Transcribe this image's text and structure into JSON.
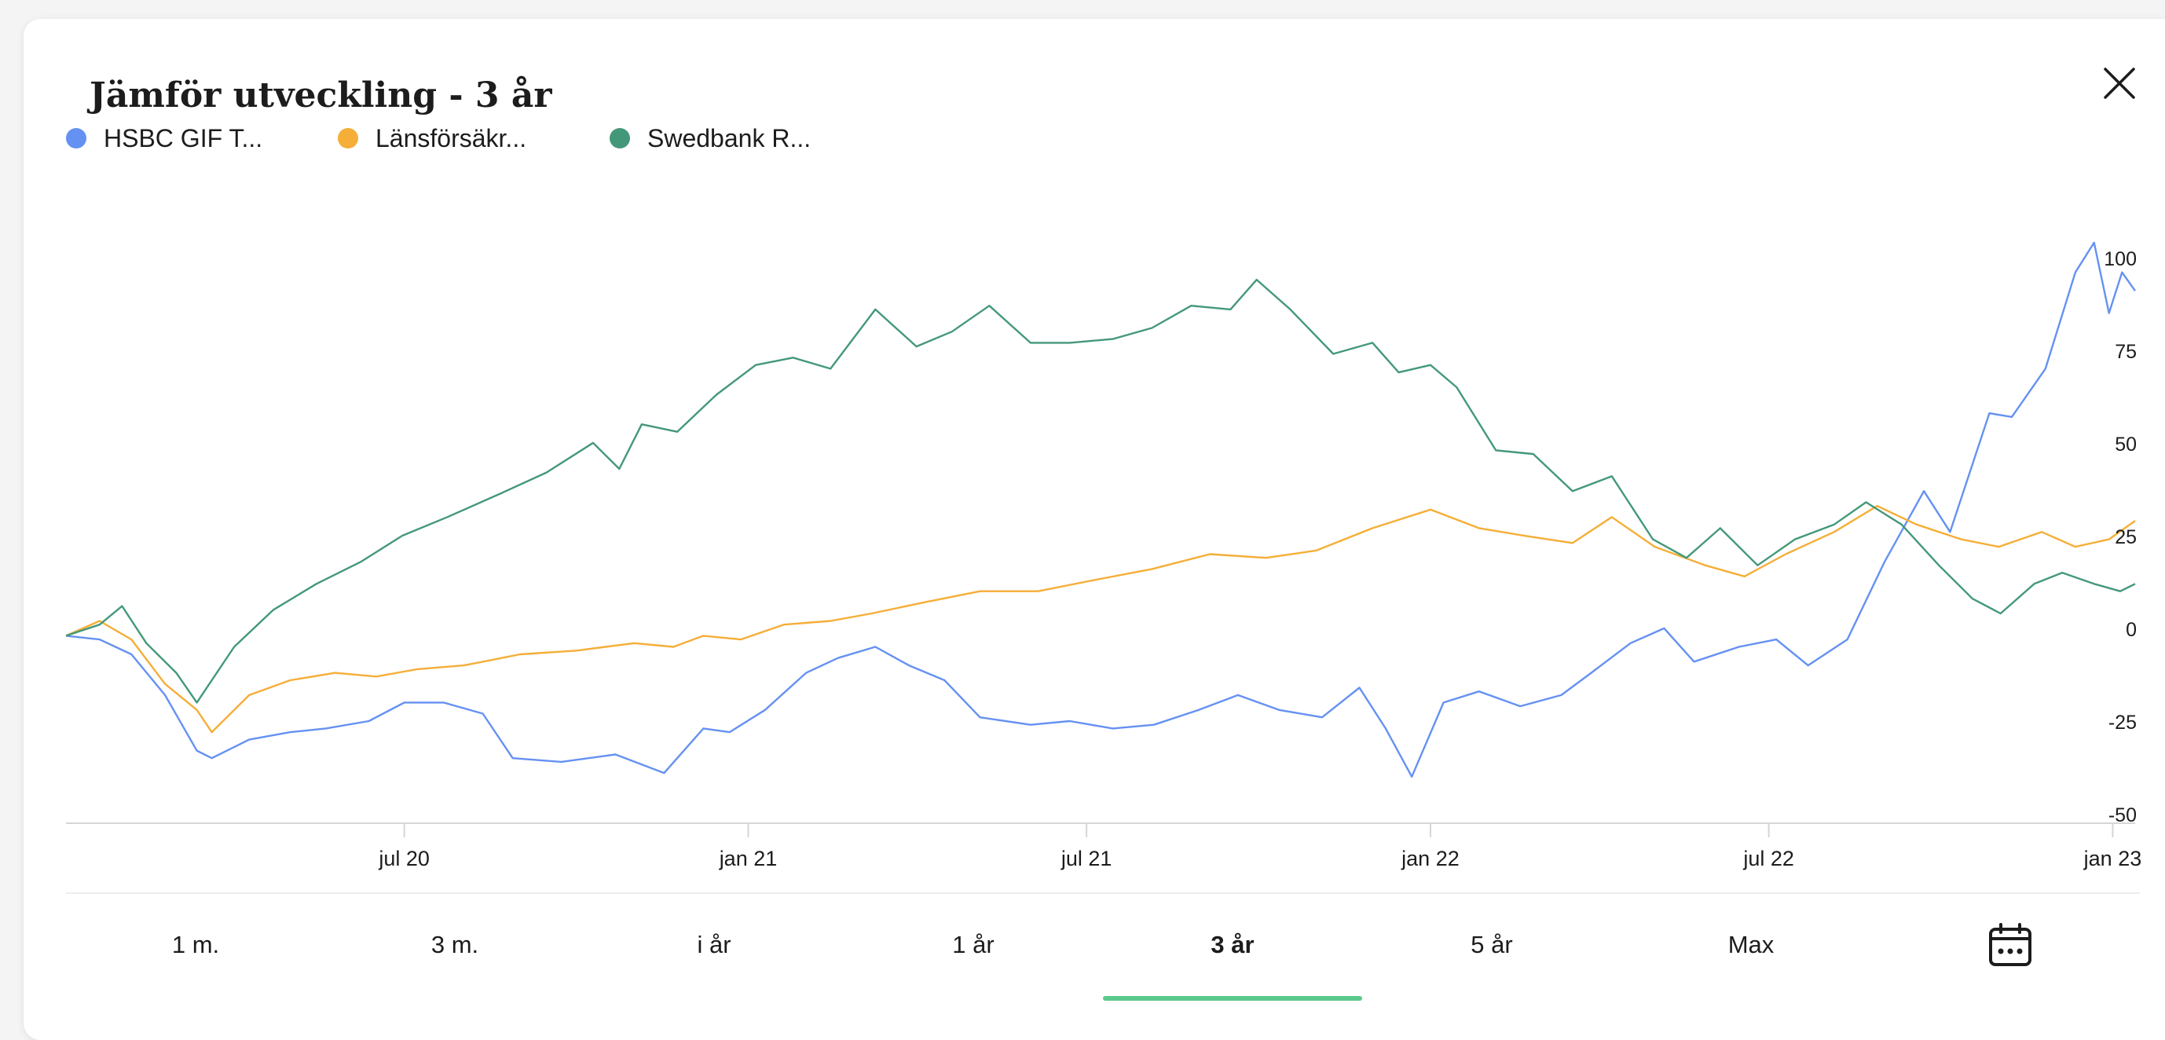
{
  "dialog": {
    "title": "Jämför utveckling - 3 år"
  },
  "legend": [
    {
      "label": "HSBC GIF T...",
      "color": "#6591f2"
    },
    {
      "label": "Länsförsäkr...",
      "color": "#f5ae37"
    },
    {
      "label": "Swedbank R...",
      "color": "#44987a"
    }
  ],
  "periods": [
    "1 m.",
    "3 m.",
    "i år",
    "1 år",
    "3 år",
    "5 år",
    "Max"
  ],
  "active_period": "3 år",
  "icons": {
    "close": "close-icon",
    "calendar": "calendar-icon"
  },
  "chart_data": {
    "type": "line",
    "title": "",
    "xlabel": "",
    "ylabel": "",
    "x_start": "2020-01-02",
    "x_end": "2023-01-13",
    "xlim": [
      "2020-01-02",
      "2023-01-13"
    ],
    "ylim": [
      -50,
      108
    ],
    "y_ticks": [
      100,
      75,
      50,
      25,
      0,
      -25,
      -50
    ],
    "x_ticks": [
      {
        "label": "jul 20",
        "date": "2020-07-01"
      },
      {
        "label": "jan 21",
        "date": "2021-01-01"
      },
      {
        "label": "jul 21",
        "date": "2021-07-01"
      },
      {
        "label": "jan 22",
        "date": "2022-01-01"
      },
      {
        "label": "jul 22",
        "date": "2022-07-01"
      },
      {
        "label": "jan 23",
        "date": "2023-01-01"
      }
    ],
    "grid": false,
    "y_axis_position": "right",
    "series": [
      {
        "name": "HSBC GIF T...",
        "color": "#6591f2",
        "points": [
          [
            "2020-01-02",
            -2
          ],
          [
            "2020-01-20",
            -3
          ],
          [
            "2020-02-06",
            -7
          ],
          [
            "2020-02-24",
            -18
          ],
          [
            "2020-03-12",
            -33
          ],
          [
            "2020-03-20",
            -35
          ],
          [
            "2020-04-09",
            -30
          ],
          [
            "2020-05-01",
            -28
          ],
          [
            "2020-05-20",
            -27
          ],
          [
            "2020-06-12",
            -25
          ],
          [
            "2020-07-01",
            -20
          ],
          [
            "2020-07-22",
            -20
          ],
          [
            "2020-08-12",
            -23
          ],
          [
            "2020-08-28",
            -35
          ],
          [
            "2020-09-23",
            -36
          ],
          [
            "2020-10-22",
            -34
          ],
          [
            "2020-11-17",
            -39
          ],
          [
            "2020-12-08",
            -27
          ],
          [
            "2020-12-22",
            -28
          ],
          [
            "2021-01-10",
            -22
          ],
          [
            "2021-02-01",
            -12
          ],
          [
            "2021-02-18",
            -8
          ],
          [
            "2021-03-10",
            -5
          ],
          [
            "2021-03-28",
            -10
          ],
          [
            "2021-04-16",
            -14
          ],
          [
            "2021-05-05",
            -24
          ],
          [
            "2021-06-01",
            -26
          ],
          [
            "2021-06-22",
            -25
          ],
          [
            "2021-07-15",
            -27
          ],
          [
            "2021-08-06",
            -26
          ],
          [
            "2021-08-30",
            -22
          ],
          [
            "2021-09-20",
            -18
          ],
          [
            "2021-10-12",
            -22
          ],
          [
            "2021-11-04",
            -24
          ],
          [
            "2021-11-24",
            -16
          ],
          [
            "2021-12-08",
            -27
          ],
          [
            "2021-12-22",
            -40
          ],
          [
            "2022-01-08",
            -20
          ],
          [
            "2022-01-27",
            -17
          ],
          [
            "2022-02-18",
            -21
          ],
          [
            "2022-03-12",
            -18
          ],
          [
            "2022-03-28",
            -12
          ],
          [
            "2022-04-18",
            -4
          ],
          [
            "2022-05-06",
            0
          ],
          [
            "2022-05-22",
            -9
          ],
          [
            "2022-06-15",
            -5
          ],
          [
            "2022-07-05",
            -3
          ],
          [
            "2022-07-22",
            -10
          ],
          [
            "2022-08-12",
            -3
          ],
          [
            "2022-09-01",
            18
          ],
          [
            "2022-09-22",
            37
          ],
          [
            "2022-10-06",
            26
          ],
          [
            "2022-10-27",
            58
          ],
          [
            "2022-11-08",
            57
          ],
          [
            "2022-11-26",
            70
          ],
          [
            "2022-12-12",
            96
          ],
          [
            "2022-12-22",
            104
          ],
          [
            "2022-12-30",
            85
          ],
          [
            "2023-01-06",
            96
          ],
          [
            "2023-01-13",
            91
          ]
        ]
      },
      {
        "name": "Länsförsäkr...",
        "color": "#f5ae37",
        "points": [
          [
            "2020-01-02",
            -2
          ],
          [
            "2020-01-20",
            2
          ],
          [
            "2020-02-06",
            -3
          ],
          [
            "2020-02-24",
            -15
          ],
          [
            "2020-03-12",
            -22
          ],
          [
            "2020-03-20",
            -28
          ],
          [
            "2020-04-09",
            -18
          ],
          [
            "2020-05-01",
            -14
          ],
          [
            "2020-05-25",
            -12
          ],
          [
            "2020-06-16",
            -13
          ],
          [
            "2020-07-08",
            -11
          ],
          [
            "2020-08-02",
            -10
          ],
          [
            "2020-09-01",
            -7
          ],
          [
            "2020-10-01",
            -6
          ],
          [
            "2020-11-01",
            -4
          ],
          [
            "2020-11-22",
            -5
          ],
          [
            "2020-12-08",
            -2
          ],
          [
            "2020-12-28",
            -3
          ],
          [
            "2021-01-20",
            1
          ],
          [
            "2021-02-14",
            2
          ],
          [
            "2021-03-08",
            4
          ],
          [
            "2021-04-05",
            7
          ],
          [
            "2021-05-05",
            10
          ],
          [
            "2021-06-05",
            10
          ],
          [
            "2021-07-05",
            13
          ],
          [
            "2021-08-05",
            16
          ],
          [
            "2021-09-05",
            20
          ],
          [
            "2021-10-05",
            19
          ],
          [
            "2021-11-01",
            21
          ],
          [
            "2021-12-01",
            27
          ],
          [
            "2022-01-01",
            32
          ],
          [
            "2022-01-27",
            27
          ],
          [
            "2022-02-20",
            25
          ],
          [
            "2022-03-18",
            23
          ],
          [
            "2022-04-08",
            30
          ],
          [
            "2022-05-01",
            22
          ],
          [
            "2022-05-28",
            17
          ],
          [
            "2022-06-18",
            14
          ],
          [
            "2022-07-10",
            20
          ],
          [
            "2022-08-05",
            26
          ],
          [
            "2022-08-28",
            33
          ],
          [
            "2022-09-18",
            28
          ],
          [
            "2022-10-12",
            24
          ],
          [
            "2022-11-01",
            22
          ],
          [
            "2022-11-24",
            26
          ],
          [
            "2022-12-12",
            22
          ],
          [
            "2022-12-30",
            24
          ],
          [
            "2023-01-13",
            29
          ]
        ]
      },
      {
        "name": "Swedbank R...",
        "color": "#44987a",
        "points": [
          [
            "2020-01-02",
            -2
          ],
          [
            "2020-01-20",
            1
          ],
          [
            "2020-02-01",
            6
          ],
          [
            "2020-02-14",
            -4
          ],
          [
            "2020-03-01",
            -12
          ],
          [
            "2020-03-12",
            -20
          ],
          [
            "2020-04-01",
            -5
          ],
          [
            "2020-04-22",
            5
          ],
          [
            "2020-05-15",
            12
          ],
          [
            "2020-06-08",
            18
          ],
          [
            "2020-06-30",
            25
          ],
          [
            "2020-07-24",
            30
          ],
          [
            "2020-08-20",
            36
          ],
          [
            "2020-09-15",
            42
          ],
          [
            "2020-10-10",
            50
          ],
          [
            "2020-10-24",
            43
          ],
          [
            "2020-11-05",
            55
          ],
          [
            "2020-11-24",
            53
          ],
          [
            "2020-12-15",
            63
          ],
          [
            "2021-01-05",
            71
          ],
          [
            "2021-01-25",
            73
          ],
          [
            "2021-02-14",
            70
          ],
          [
            "2021-03-10",
            86
          ],
          [
            "2021-04-01",
            76
          ],
          [
            "2021-04-20",
            80
          ],
          [
            "2021-05-10",
            87
          ],
          [
            "2021-06-01",
            77
          ],
          [
            "2021-06-22",
            77
          ],
          [
            "2021-07-15",
            78
          ],
          [
            "2021-08-05",
            81
          ],
          [
            "2021-08-26",
            87
          ],
          [
            "2021-09-16",
            86
          ],
          [
            "2021-09-30",
            94
          ],
          [
            "2021-10-18",
            86
          ],
          [
            "2021-11-10",
            74
          ],
          [
            "2021-12-01",
            77
          ],
          [
            "2021-12-15",
            69
          ],
          [
            "2022-01-01",
            71
          ],
          [
            "2022-01-15",
            65
          ],
          [
            "2022-02-05",
            48
          ],
          [
            "2022-02-25",
            47
          ],
          [
            "2022-03-18",
            37
          ],
          [
            "2022-04-08",
            41
          ],
          [
            "2022-04-30",
            24
          ],
          [
            "2022-05-18",
            19
          ],
          [
            "2022-06-05",
            27
          ],
          [
            "2022-06-25",
            17
          ],
          [
            "2022-07-15",
            24
          ],
          [
            "2022-08-05",
            28
          ],
          [
            "2022-08-22",
            34
          ],
          [
            "2022-09-10",
            28
          ],
          [
            "2022-09-30",
            17
          ],
          [
            "2022-10-18",
            8
          ],
          [
            "2022-11-02",
            4
          ],
          [
            "2022-11-20",
            12
          ],
          [
            "2022-12-05",
            15
          ],
          [
            "2022-12-22",
            12
          ],
          [
            "2023-01-05",
            10
          ],
          [
            "2023-01-13",
            12
          ]
        ]
      }
    ]
  }
}
